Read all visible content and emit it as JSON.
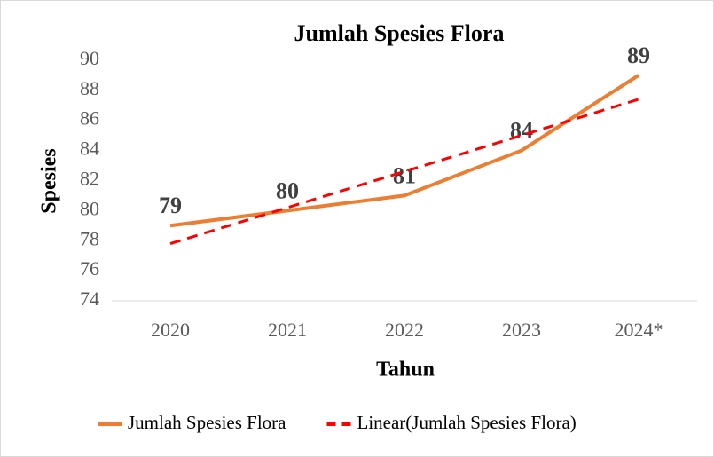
{
  "chart_data": {
    "type": "line",
    "title": "Jumlah Spesies Flora",
    "x_label": "Tahun",
    "y_label": "Spesies",
    "categories": [
      "2020",
      "2021",
      "2022",
      "2023",
      "2024*"
    ],
    "series": [
      {
        "name": "Jumlah Spesies Flora",
        "color": "#ed7d31",
        "dash": "solid",
        "values": [
          79,
          80,
          81,
          84,
          89
        ]
      },
      {
        "name": "Linear(Jumlah Spesies Flora)",
        "color": "#ff0000",
        "dash": "dashed",
        "values": [
          77.8,
          80.2,
          82.6,
          85.0,
          87.4
        ]
      }
    ],
    "data_labels_series": 0,
    "ylim": [
      74,
      92
    ],
    "yticks": [
      74,
      76,
      78,
      80,
      82,
      84,
      86,
      88,
      90
    ],
    "grid": false,
    "legend": "bottom"
  }
}
